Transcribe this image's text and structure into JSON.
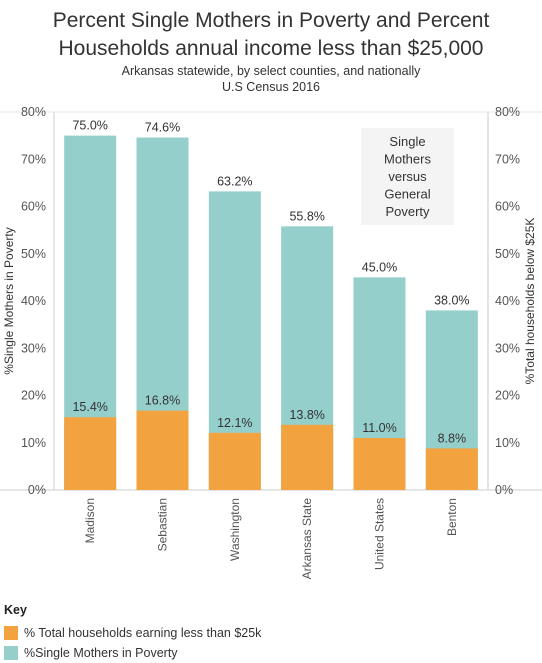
{
  "title_line1": "Percent Single Mothers in Poverty and Percent",
  "title_line2": "Households annual income less than $25,000",
  "subtitle_line1": "Arkansas statewide, by select counties, and nationally",
  "subtitle_line2": "U.S Census 2016",
  "annotation_lines": [
    "Single",
    "Mothers",
    "versus",
    "General",
    "Poverty"
  ],
  "colors": {
    "single_mothers": "#95cfcc",
    "households": "#f2a23e",
    "axis": "#cccccc",
    "text": "#555555"
  },
  "key": {
    "title": "Key",
    "items": [
      {
        "label": "% Total households earning less than $25k",
        "color": "#f2a23e"
      },
      {
        "label": "%Single Mothers in Poverty",
        "color": "#95cfcc"
      }
    ]
  },
  "chart_data": {
    "type": "bar",
    "categories": [
      "Madison",
      "Sebastian",
      "Washington",
      "Arkansas State",
      "United States",
      "Benton"
    ],
    "series": [
      {
        "name": "%Single Mothers in Poverty",
        "values": [
          75.0,
          74.6,
          63.2,
          55.8,
          45.0,
          38.0
        ],
        "labels": [
          "75.0%",
          "74.6%",
          "63.2%",
          "55.8%",
          "45.0%",
          "38.0%"
        ]
      },
      {
        "name": "% Total households earning less than $25k",
        "values": [
          15.4,
          16.8,
          12.1,
          13.8,
          11.0,
          8.8
        ],
        "labels": [
          "15.4%",
          "16.8%",
          "12.1%",
          "13.8%",
          "11.0%",
          "8.8%"
        ]
      }
    ],
    "ylabel_left": "%Single Mothers in Poverty",
    "ylabel_right": "%Total households below $25K",
    "ylim": [
      0,
      80
    ],
    "yticks": [
      0,
      10,
      20,
      30,
      40,
      50,
      60,
      70,
      80
    ],
    "ytick_labels": [
      "0%",
      "10%",
      "20%",
      "30%",
      "40%",
      "50%",
      "60%",
      "70%",
      "80%"
    ],
    "grid": false
  }
}
